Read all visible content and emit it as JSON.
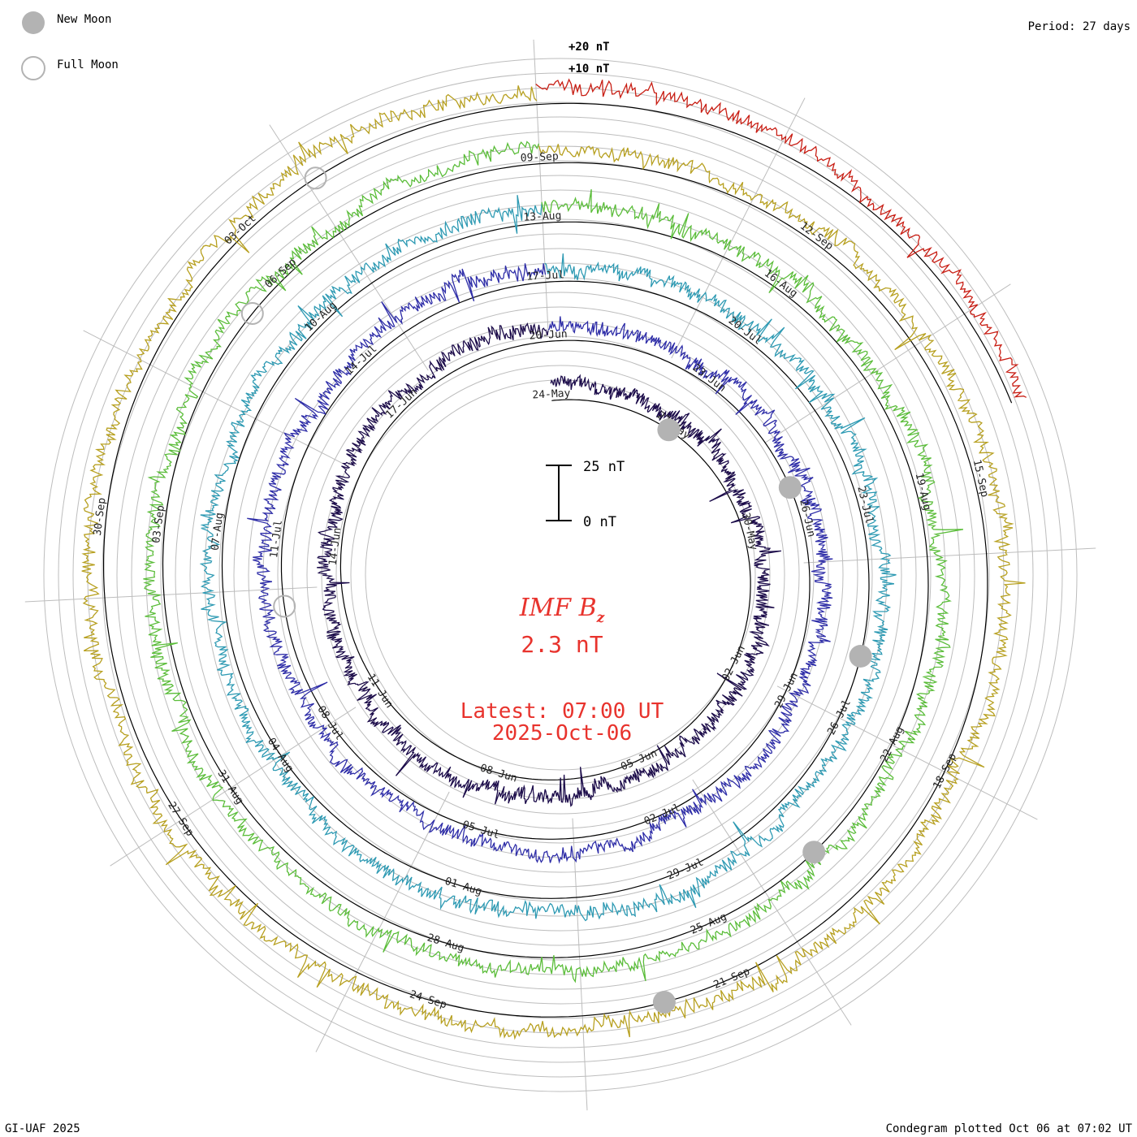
{
  "legend": {
    "new_moon": "New Moon",
    "full_moon": "Full Moon"
  },
  "period_label": "Period: 27 days",
  "ring_scale": {
    "label_top": "+20 nT",
    "label_second": "+10 nT"
  },
  "scale_bar": {
    "top_label": "25 nT",
    "bottom_label": "0 nT"
  },
  "center": {
    "title": "IMF B",
    "title_subscript": "z",
    "value": "2.3 nT",
    "latest": "Latest: 07:00 UT",
    "date": "2025-Oct-06"
  },
  "footer": {
    "left": "GI-UAF 2025",
    "right": "Condegram plotted Oct 06 at 07:02 UT"
  },
  "colors": {
    "accent_text": "#e8332d",
    "moon_fill": "#b3b3b3",
    "grid": "#bdbdbd"
  },
  "chart_data": {
    "type": "condegram",
    "title": "IMF Bz",
    "unit": "nT",
    "period_days": 27,
    "series": [
      {
        "name": "24-May to 20-Jun",
        "color": "#1c0c4a"
      },
      {
        "name": "20-Jun to 17-Jul",
        "color": "#2f2ea8"
      },
      {
        "name": "17-Jul to 13-Aug",
        "color": "#2e9ab3"
      },
      {
        "name": "13-Aug to 09-Sep",
        "color": "#5bbd3a"
      },
      {
        "name": "09-Sep to 06-Oct",
        "color": "#b7a020"
      },
      {
        "name": "06-Oct",
        "color": "#c81e14"
      }
    ],
    "date_labels": [
      {
        "text": "24-May",
        "cycle": 0,
        "frac": 0.0
      },
      {
        "text": "27-May",
        "cycle": 0,
        "frac": 0.111
      },
      {
        "text": "30-May",
        "cycle": 0,
        "frac": 0.222
      },
      {
        "text": "02-Jun",
        "cycle": 0,
        "frac": 0.333
      },
      {
        "text": "05-Jun",
        "cycle": 0,
        "frac": 0.444
      },
      {
        "text": "08-Jun",
        "cycle": 0,
        "frac": 0.556
      },
      {
        "text": "11-Jun",
        "cycle": 0,
        "frac": 0.667
      },
      {
        "text": "14-Jun",
        "cycle": 0,
        "frac": 0.778
      },
      {
        "text": "17-Jun",
        "cycle": 0,
        "frac": 0.889
      },
      {
        "text": "20-Jun",
        "cycle": 1,
        "frac": 0.0
      },
      {
        "text": "23-Jun",
        "cycle": 1,
        "frac": 0.111
      },
      {
        "text": "26-Jun",
        "cycle": 1,
        "frac": 0.222
      },
      {
        "text": "29-Jun",
        "cycle": 1,
        "frac": 0.333
      },
      {
        "text": "02-Jul",
        "cycle": 1,
        "frac": 0.444
      },
      {
        "text": "05-Jul",
        "cycle": 1,
        "frac": 0.556
      },
      {
        "text": "08-Jul",
        "cycle": 1,
        "frac": 0.667
      },
      {
        "text": "11-Jul",
        "cycle": 1,
        "frac": 0.778
      },
      {
        "text": "14-Jul",
        "cycle": 1,
        "frac": 0.889
      },
      {
        "text": "17-Jul",
        "cycle": 2,
        "frac": 0.0
      },
      {
        "text": "20-Jul",
        "cycle": 2,
        "frac": 0.111
      },
      {
        "text": "23-Jul",
        "cycle": 2,
        "frac": 0.222
      },
      {
        "text": "26-Jul",
        "cycle": 2,
        "frac": 0.333
      },
      {
        "text": "29-Jul",
        "cycle": 2,
        "frac": 0.444
      },
      {
        "text": "01-Aug",
        "cycle": 2,
        "frac": 0.556
      },
      {
        "text": "04-Aug",
        "cycle": 2,
        "frac": 0.667
      },
      {
        "text": "07-Aug",
        "cycle": 2,
        "frac": 0.778
      },
      {
        "text": "10-Aug",
        "cycle": 2,
        "frac": 0.889
      },
      {
        "text": "13-Aug",
        "cycle": 3,
        "frac": 0.0
      },
      {
        "text": "16-Aug",
        "cycle": 3,
        "frac": 0.111
      },
      {
        "text": "19-Aug",
        "cycle": 3,
        "frac": 0.222
      },
      {
        "text": "22-Aug",
        "cycle": 3,
        "frac": 0.333
      },
      {
        "text": "25-Aug",
        "cycle": 3,
        "frac": 0.444
      },
      {
        "text": "28-Aug",
        "cycle": 3,
        "frac": 0.556
      },
      {
        "text": "31-Aug",
        "cycle": 3,
        "frac": 0.667
      },
      {
        "text": "03-Sep",
        "cycle": 3,
        "frac": 0.778
      },
      {
        "text": "06-Sep",
        "cycle": 3,
        "frac": 0.889
      },
      {
        "text": "09-Sep",
        "cycle": 4,
        "frac": 0.0
      },
      {
        "text": "12-Sep",
        "cycle": 4,
        "frac": 0.111
      },
      {
        "text": "15-Sep",
        "cycle": 4,
        "frac": 0.222
      },
      {
        "text": "18-Sep",
        "cycle": 4,
        "frac": 0.333
      },
      {
        "text": "21-Sep",
        "cycle": 4,
        "frac": 0.444
      },
      {
        "text": "24-Sep",
        "cycle": 4,
        "frac": 0.556
      },
      {
        "text": "27-Sep",
        "cycle": 4,
        "frac": 0.667
      },
      {
        "text": "30-Sep",
        "cycle": 4,
        "frac": 0.778
      },
      {
        "text": "03-Oct",
        "cycle": 4,
        "frac": 0.889
      }
    ],
    "moon_markers": [
      {
        "type": "new",
        "cycle": 0,
        "frac": 0.11
      },
      {
        "type": "new",
        "cycle": 1,
        "frac": 0.2
      },
      {
        "type": "new",
        "cycle": 2,
        "frac": 0.3
      },
      {
        "type": "new",
        "cycle": 3,
        "frac": 0.39
      },
      {
        "type": "new",
        "cycle": 4,
        "frac": 0.47
      },
      {
        "type": "full",
        "cycle": 1,
        "frac": 0.74
      },
      {
        "type": "full",
        "cycle": 3,
        "frac": 0.87
      },
      {
        "type": "full",
        "cycle": 4,
        "frac": 0.92
      }
    ]
  }
}
